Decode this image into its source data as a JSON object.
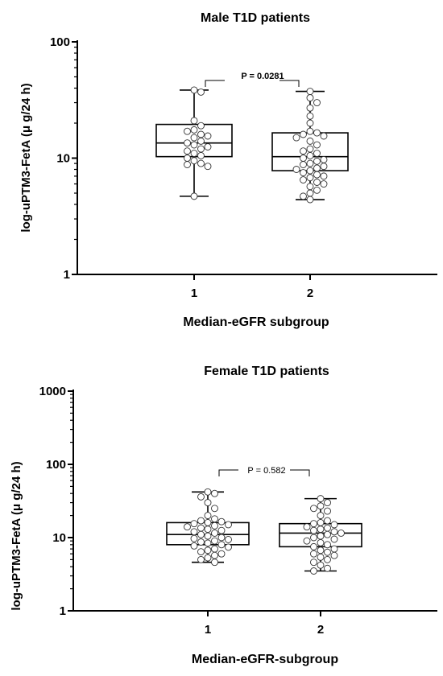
{
  "chart_data": [
    {
      "type": "box",
      "title": "Male T1D patients",
      "xlabel": "Median-eGFR subgroup",
      "ylabel": "log-uPTM3-FetA (μ g/24 h)",
      "yscale": "log",
      "ylim": [
        1,
        100
      ],
      "yticks": [
        "1",
        "10",
        "100"
      ],
      "categories": [
        "1",
        "2"
      ],
      "grid": false,
      "annotation": "P = 0.0281",
      "annotation_bold": true,
      "boxes": [
        {
          "category": "1",
          "min": 4.7,
          "q1": 10.3,
          "median": 13.5,
          "q3": 19.5,
          "max": 38.5,
          "points": [
            38.5,
            37,
            21,
            19,
            17.5,
            17,
            16,
            15.5,
            15,
            14,
            13.5,
            13,
            12.5,
            12,
            11.5,
            11,
            10.5,
            10,
            9.5,
            9,
            8.8,
            8.5,
            4.7
          ]
        },
        {
          "category": "2",
          "min": 4.4,
          "q1": 7.8,
          "median": 10.3,
          "q3": 16.5,
          "max": 37.5,
          "points": [
            37.5,
            33,
            30,
            27,
            23,
            20,
            17,
            16.5,
            16,
            15.5,
            15,
            14,
            13,
            12,
            11.5,
            11,
            10.5,
            10,
            9.7,
            9.4,
            9,
            8.8,
            8.5,
            8.2,
            8,
            7.8,
            7.5,
            7.2,
            7,
            6.8,
            6.5,
            6.2,
            6,
            5.7,
            5.3,
            5,
            4.7,
            4.4
          ]
        }
      ]
    },
    {
      "type": "box",
      "title": "Female T1D patients",
      "xlabel": "Median-eGFR-subgroup",
      "ylabel": "log-uPTM3-FetA (μ g/24 h)",
      "yscale": "log",
      "ylim": [
        1,
        1000
      ],
      "yticks": [
        "1",
        "10",
        "100",
        "1000"
      ],
      "categories": [
        "1",
        "2"
      ],
      "grid": false,
      "annotation": "P = 0.582",
      "annotation_bold": false,
      "boxes": [
        {
          "category": "1",
          "min": 4.6,
          "q1": 8.0,
          "median": 11.0,
          "q3": 16.0,
          "max": 42,
          "points": [
            42,
            40,
            36,
            30,
            25,
            20,
            18,
            17,
            16.5,
            16,
            15.5,
            15,
            14.5,
            14,
            13.5,
            13,
            12.5,
            12,
            11.5,
            11,
            10.5,
            10,
            9.7,
            9.4,
            9,
            8.7,
            8.4,
            8,
            7.7,
            7.4,
            7,
            6.7,
            6.4,
            6,
            5.7,
            5.3,
            5,
            4.6
          ]
        },
        {
          "category": "2",
          "min": 3.5,
          "q1": 7.5,
          "median": 11.5,
          "q3": 15.5,
          "max": 34,
          "points": [
            34,
            30,
            27,
            25,
            23,
            20,
            17,
            16,
            15.5,
            15,
            14,
            13.5,
            13,
            12.5,
            12,
            11.5,
            11,
            10.5,
            10,
            9.5,
            9,
            8.5,
            8,
            7.5,
            7,
            6.7,
            6.3,
            6,
            5.7,
            5.4,
            5,
            4.6,
            4.2,
            3.8,
            3.5
          ]
        }
      ]
    }
  ]
}
